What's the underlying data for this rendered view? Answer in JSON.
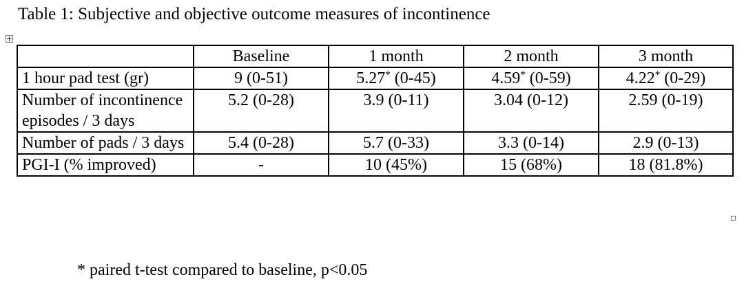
{
  "caption": "Table 1: Subjective and objective outcome measures of incontinence",
  "table": {
    "headers": [
      "",
      "Baseline",
      "1 month",
      "2 month",
      "3 month"
    ],
    "rows": [
      {
        "label": "1 hour pad test (gr)",
        "cells": [
          {
            "value": "9",
            "sup": "",
            "range": "(0-51)"
          },
          {
            "value": "5.27",
            "sup": "*",
            "range": "(0-45)"
          },
          {
            "value": "4.59",
            "sup": "*",
            "range": "(0-59)"
          },
          {
            "value": "4.22",
            "sup": "*",
            "range": "(0-29)"
          }
        ]
      },
      {
        "label": "Number of incontinence episodes / 3 days",
        "cells": [
          {
            "value": "5.2",
            "sup": "",
            "range": "(0-28)"
          },
          {
            "value": "3.9",
            "sup": "",
            "range": "(0-11)"
          },
          {
            "value": "3.04",
            "sup": "",
            "range": "(0-12)"
          },
          {
            "value": "2.59",
            "sup": "",
            "range": "(0-19)"
          }
        ]
      },
      {
        "label": "Number of pads / 3 days",
        "cells": [
          {
            "value": "5.4",
            "sup": "",
            "range": "(0-28)"
          },
          {
            "value": "5.7",
            "sup": "",
            "range": "(0-33)"
          },
          {
            "value": "3.3",
            "sup": "",
            "range": "(0-14)"
          },
          {
            "value": "2.9",
            "sup": "",
            "range": "(0-13)"
          }
        ]
      },
      {
        "label": "PGI-I (% improved)",
        "cells": [
          {
            "value": "-",
            "sup": "",
            "range": ""
          },
          {
            "value": "10",
            "sup": "",
            "range": "(45%)"
          },
          {
            "value": "15",
            "sup": "",
            "range": "(68%)"
          },
          {
            "value": "18",
            "sup": "",
            "range": "(81.8%)"
          }
        ]
      }
    ]
  },
  "footnote": "*  paired t-test compared to baseline, p<0.05"
}
